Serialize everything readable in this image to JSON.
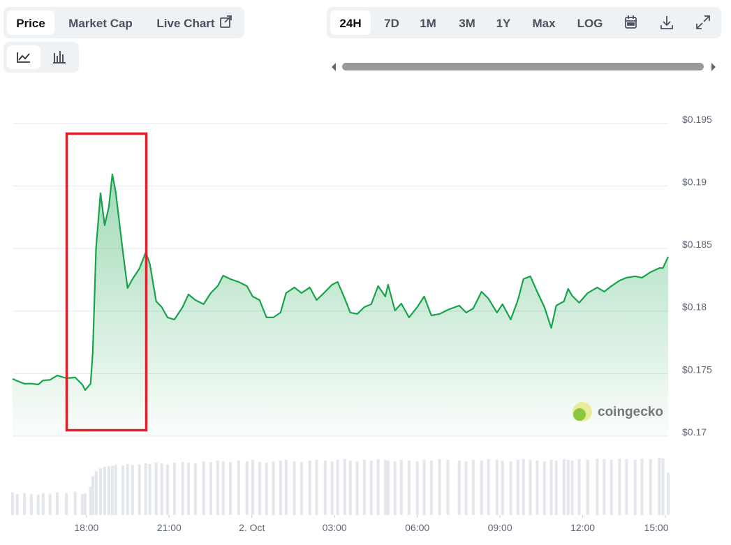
{
  "toolbar": {
    "tabs": [
      "Price",
      "Market Cap",
      "Live Chart"
    ],
    "ranges": [
      "24H",
      "7D",
      "1M",
      "3M",
      "1Y",
      "Max",
      "LOG"
    ]
  },
  "watermark": "coingecko",
  "chart_data": {
    "type": "line",
    "color": "#16a34a",
    "grid": true,
    "x": [
      15.32,
      15.49,
      15.75,
      16.0,
      16.25,
      16.43,
      16.68,
      16.94,
      17.27,
      17.59,
      17.85,
      17.95,
      18.15,
      18.23,
      18.35,
      18.51,
      18.66,
      18.81,
      18.94,
      19.06,
      19.32,
      19.49,
      19.67,
      19.92,
      20.15,
      20.3,
      20.53,
      20.73,
      20.94,
      21.19,
      21.49,
      21.7,
      21.95,
      22.25,
      22.51,
      22.76,
      22.96,
      23.22,
      23.52,
      23.82,
      24.03,
      24.28,
      24.53,
      24.78,
      25.04,
      25.24,
      25.54,
      25.8,
      26.1,
      26.35,
      26.66,
      26.91,
      27.11,
      27.37,
      27.57,
      27.82,
      28.08,
      28.33,
      28.58,
      28.84,
      28.94,
      29.19,
      29.42,
      29.7,
      30.0,
      30.25,
      30.51,
      30.81,
      31.11,
      31.52,
      31.77,
      32.03,
      32.33,
      32.58,
      32.89,
      33.09,
      33.39,
      33.65,
      33.85,
      34.1,
      34.35,
      34.61,
      34.86,
      35.04,
      35.32,
      35.47,
      35.62,
      35.87,
      36.18,
      36.53,
      36.78,
      37.04,
      37.34,
      37.59,
      37.9,
      38.15,
      38.46,
      38.78,
      38.91,
      39.1
    ],
    "values": [
      0.17458,
      0.17441,
      0.17419,
      0.1742,
      0.17413,
      0.17446,
      0.1745,
      0.17485,
      0.17463,
      0.17469,
      0.17413,
      0.17368,
      0.17419,
      0.1767,
      0.18507,
      0.18942,
      0.18685,
      0.1883,
      0.19093,
      0.18953,
      0.18479,
      0.18183,
      0.18256,
      0.18339,
      0.18468,
      0.18378,
      0.18077,
      0.18032,
      0.17949,
      0.17932,
      0.18032,
      0.18133,
      0.18088,
      0.18055,
      0.18144,
      0.182,
      0.18283,
      0.18256,
      0.18233,
      0.182,
      0.18116,
      0.18088,
      0.17949,
      0.17949,
      0.17988,
      0.18144,
      0.18189,
      0.18144,
      0.18189,
      0.18088,
      0.18155,
      0.18211,
      0.18233,
      0.181,
      0.17988,
      0.17977,
      0.18032,
      0.18055,
      0.182,
      0.18116,
      0.18211,
      0.18004,
      0.1806,
      0.17949,
      0.18032,
      0.18116,
      0.17965,
      0.17977,
      0.1801,
      0.18044,
      0.17988,
      0.18021,
      0.18155,
      0.181,
      0.17988,
      0.18055,
      0.17932,
      0.18088,
      0.18256,
      0.18278,
      0.18155,
      0.18032,
      0.17865,
      0.18044,
      0.18077,
      0.18177,
      0.18122,
      0.18066,
      0.18144,
      0.18189,
      0.18155,
      0.182,
      0.18244,
      0.18267,
      0.18278,
      0.18267,
      0.18311,
      0.18344,
      0.18344,
      0.18434
    ],
    "volume": [
      32,
      30,
      31,
      30,
      29,
      31,
      30,
      32,
      31,
      33,
      30,
      31,
      40,
      55,
      62,
      66,
      68,
      69,
      70,
      71,
      70,
      72,
      71,
      72,
      73,
      72,
      74,
      73,
      72,
      74,
      75,
      74,
      73,
      76,
      75,
      77,
      76,
      75,
      77,
      76,
      78,
      75,
      74,
      76,
      77,
      78,
      76,
      75,
      77,
      78,
      77,
      76,
      78,
      79,
      77,
      76,
      78,
      77,
      79,
      78,
      77,
      76,
      78,
      77,
      76,
      78,
      77,
      79,
      78,
      77,
      76,
      78,
      77,
      79,
      78,
      77,
      76,
      78,
      79,
      78,
      77,
      76,
      78,
      77,
      79,
      78,
      77,
      79,
      78,
      80,
      79,
      78,
      80,
      79,
      78,
      80,
      79,
      81,
      80,
      60
    ],
    "xlim": [
      15.32,
      39.1
    ],
    "xticks": [
      {
        "value": 18,
        "label": "18:00"
      },
      {
        "value": 21,
        "label": "21:00"
      },
      {
        "value": 24,
        "label": "2. Oct"
      },
      {
        "value": 27,
        "label": "03:00"
      },
      {
        "value": 30,
        "label": "06:00"
      },
      {
        "value": 33,
        "label": "09:00"
      },
      {
        "value": 36,
        "label": "12:00"
      },
      {
        "value": 39,
        "label": "15:00"
      }
    ],
    "ylim": [
      0.17,
      0.197
    ],
    "yticks": [
      {
        "value": 0.17,
        "label": "$0.17"
      },
      {
        "value": 0.175,
        "label": "$0.175"
      },
      {
        "value": 0.18,
        "label": "$0.18"
      },
      {
        "value": 0.185,
        "label": "$0.185"
      },
      {
        "value": 0.19,
        "label": "$0.19"
      },
      {
        "value": 0.195,
        "label": "$0.195"
      }
    ]
  }
}
